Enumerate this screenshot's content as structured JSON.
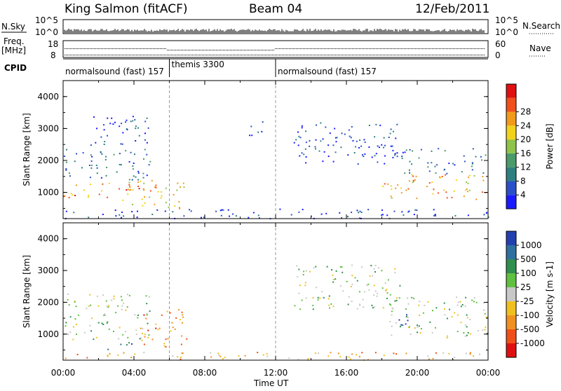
{
  "header": {
    "station": "King Salmon (fitACF)",
    "beam": "Beam 04",
    "date": "12/Feb/2011"
  },
  "strip_panels": {
    "nsky": {
      "left_label": "N.Sky",
      "left_ticks": [
        "10^5",
        "10^0"
      ],
      "right_label": "N.Search",
      "right_ticks": [
        "10^5",
        "10^0"
      ]
    },
    "freq": {
      "left_label_1": "Freq.",
      "left_label_2": "[MHz]",
      "left_ticks": [
        "18",
        "8"
      ],
      "right_label": "Nave",
      "right_ticks": [
        "60",
        "0"
      ]
    },
    "cpid": {
      "label": "CPID",
      "segments": [
        {
          "name": "normalsound (fast) 157",
          "start_h": 0.0,
          "end_h": 6.0
        },
        {
          "name": "themis 3300",
          "start_h": 6.0,
          "end_h": 12.0
        },
        {
          "name": "normalsound (fast) 157",
          "start_h": 12.0,
          "end_h": 24.0
        }
      ]
    }
  },
  "chart_data": [
    {
      "type": "heatmap",
      "title": "Power",
      "ylabel": "Slant Range [km]",
      "xlabel": "Time UT",
      "xlim": [
        0,
        24
      ],
      "ylim": [
        180,
        4500
      ],
      "y_ticks": [
        "1000",
        "2000",
        "3000",
        "4000"
      ],
      "colorbar": {
        "label": "Power [dB]",
        "ticks": [
          "4",
          "8",
          "12",
          "16",
          "20",
          "24",
          "28"
        ],
        "colors": [
          "#1a1aff",
          "#2a4fc8",
          "#2e7f7f",
          "#4a9a6a",
          "#8fc34a",
          "#f2d21b",
          "#f29a1a",
          "#f0501a",
          "#e01010"
        ]
      },
      "scatter_regions": [
        {
          "t0": 0.0,
          "t1": 5.3,
          "r0": 850,
          "r1": 1350,
          "level": 0.75
        },
        {
          "t0": 0.0,
          "t1": 5.0,
          "r0": 1400,
          "r1": 2400,
          "level": 0.25
        },
        {
          "t0": 3.3,
          "t1": 6.8,
          "r0": 500,
          "r1": 1400,
          "level": 0.6
        },
        {
          "t0": 1.5,
          "t1": 5.0,
          "r0": 2500,
          "r1": 3500,
          "level": 0.15
        },
        {
          "t0": 10.5,
          "t1": 11.5,
          "r0": 2800,
          "r1": 3300,
          "level": 0.15
        },
        {
          "t0": 13.0,
          "t1": 19.0,
          "r0": 1900,
          "r1": 3200,
          "level": 0.15
        },
        {
          "t0": 18.0,
          "t1": 24.0,
          "r0": 800,
          "r1": 1600,
          "level": 0.7
        },
        {
          "t0": 18.5,
          "t1": 24.0,
          "r0": 1600,
          "r1": 2400,
          "level": 0.25
        },
        {
          "t0": 0.0,
          "t1": 24.0,
          "r0": 200,
          "r1": 500,
          "level": 0.12
        }
      ]
    },
    {
      "type": "heatmap",
      "title": "Velocity",
      "ylabel": "Slant Range [km]",
      "xlabel": "Time UT",
      "xlim": [
        0,
        24
      ],
      "ylim": [
        180,
        4500
      ],
      "x_ticks": [
        "00:00",
        "04:00",
        "08:00",
        "12:00",
        "16:00",
        "20:00",
        "00:00"
      ],
      "y_ticks": [
        "1000",
        "2000",
        "3000",
        "4000"
      ],
      "colorbar": {
        "label": "Velocity [m s-1]",
        "ticks": [
          "1000",
          "500",
          "100",
          "25",
          "-25",
          "-100",
          "-500",
          "-1000"
        ],
        "colors": [
          "#2440b0",
          "#3070a0",
          "#2f8f4f",
          "#60c040",
          "#c8c8c8",
          "#f0c020",
          "#f09020",
          "#f05018",
          "#e01010"
        ]
      },
      "scatter_regions": [
        {
          "t0": 0.0,
          "t1": 5.0,
          "r0": 850,
          "r1": 2300,
          "level": 0.45
        },
        {
          "t0": 4.3,
          "t1": 7.0,
          "r0": 600,
          "r1": 1800,
          "level": 0.75
        },
        {
          "t0": 2.5,
          "t1": 4.0,
          "r0": 500,
          "r1": 800,
          "level": 0.15
        },
        {
          "t0": 13.0,
          "t1": 19.0,
          "r0": 1800,
          "r1": 3200,
          "level": 0.45
        },
        {
          "t0": 18.0,
          "t1": 24.0,
          "r0": 900,
          "r1": 2200,
          "level": 0.45
        },
        {
          "t0": 18.5,
          "t1": 19.5,
          "r0": 1000,
          "r1": 1700,
          "level": 0.15
        },
        {
          "t0": 0.0,
          "t1": 24.0,
          "r0": 200,
          "r1": 450,
          "level": 0.65
        }
      ]
    }
  ]
}
